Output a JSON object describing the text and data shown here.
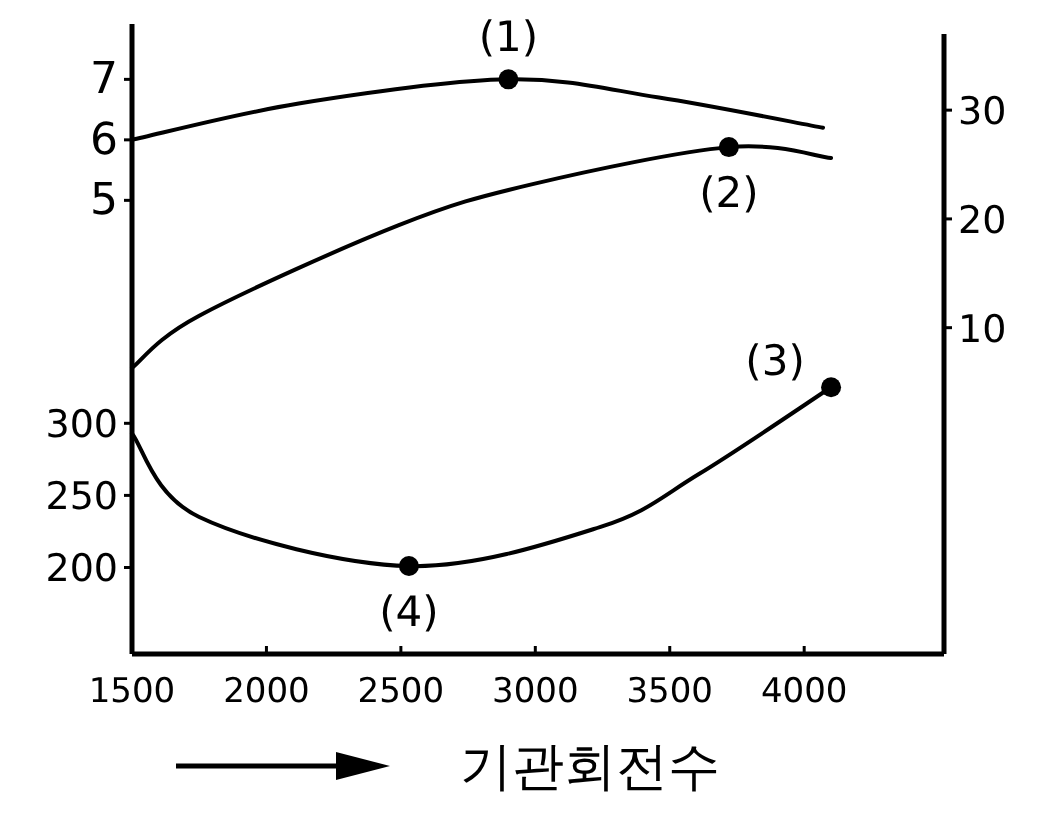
{
  "chart_data": {
    "type": "line",
    "xlabel": "기관회전수",
    "xlim": [
      1500,
      4520
    ],
    "xticks": [
      1500,
      2000,
      2500,
      3000,
      3500,
      4000
    ],
    "ylim": [
      -2.5,
      7.75
    ],
    "yticks": [
      5,
      6,
      7
    ],
    "y2lim": [
      -20,
      37
    ],
    "y2ticks": [
      10,
      20,
      30
    ],
    "y3lim": [
      140,
      570
    ],
    "y3ticks": [
      200,
      250,
      300
    ],
    "line_style": "solid",
    "series": [
      {
        "axis": "y",
        "color": "#000000",
        "x": [
          1500,
          2120,
          2900,
          3460,
          4070
        ],
        "values": [
          6.0,
          6.6,
          7.0,
          6.7,
          6.2
        ]
      },
      {
        "axis": "y2",
        "color": "#000000",
        "x": [
          1500,
          1750,
          2490,
          2990,
          3720,
          4100
        ],
        "values": [
          6.3,
          11.1,
          19.4,
          23.2,
          26.6,
          25.6
        ]
      },
      {
        "axis": "y3",
        "color": "#000000",
        "x": [
          1500,
          1750,
          2530,
          3240,
          3610,
          4100
        ],
        "values": [
          293,
          235,
          201,
          228,
          265,
          325
        ]
      },
      {
        "type": "scatter",
        "axis": "y",
        "marker": "circle",
        "color": "#000000",
        "x": [
          2900
        ],
        "values": [
          7.0
        ]
      },
      {
        "type": "scatter",
        "axis": "y2",
        "marker": "circle",
        "color": "#000000",
        "x": [
          3720
        ],
        "values": [
          26.6
        ]
      },
      {
        "type": "scatter",
        "axis": "y3",
        "marker": "circle",
        "color": "#000000",
        "x": [
          4100,
          2530
        ],
        "values": [
          325,
          201
        ]
      }
    ],
    "annotations": [
      "(1)",
      "(2)",
      "(3)",
      "(4)"
    ]
  }
}
